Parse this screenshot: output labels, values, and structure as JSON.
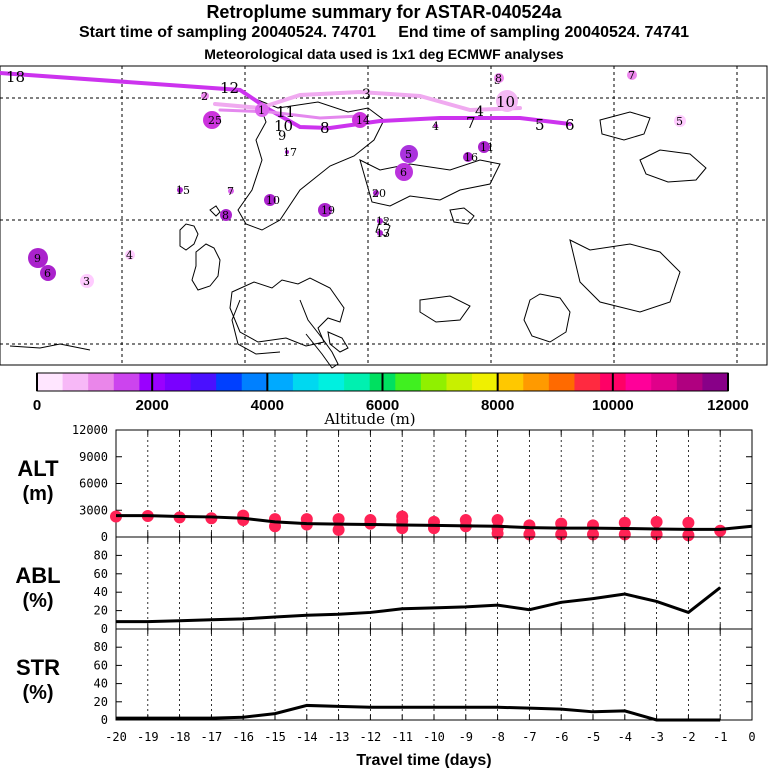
{
  "header": {
    "title": "Retroplume summary for ASTAR-040524a",
    "start_label": "Start time of sampling 20040524. 74701",
    "end_label": "End time of sampling 20040524. 74741",
    "met_label": "Meteorological data used is 1x1 deg ECMWF analyses"
  },
  "colorbar": {
    "label": "Altitude (m)",
    "ticks": [
      "0",
      "2000",
      "4000",
      "6000",
      "8000",
      "10000",
      "12000"
    ],
    "colors": [
      "#ffe6ff",
      "#f7b8f7",
      "#ea86ea",
      "#cc44ee",
      "#9a00ff",
      "#7a00ff",
      "#4a10ff",
      "#0040ff",
      "#0080ff",
      "#00aaff",
      "#00d8f0",
      "#00f0e0",
      "#00f0b0",
      "#00e060",
      "#40f020",
      "#90f000",
      "#c8f000",
      "#f0f000",
      "#ffc800",
      "#ff9a00",
      "#ff6a00",
      "#ff2a40",
      "#ff0066",
      "#ff0099",
      "#e0008a",
      "#b00080",
      "#880088"
    ]
  },
  "map": {
    "plume_path_1_labels": [
      "18",
      "12",
      "11",
      "10",
      "9",
      "8"
    ],
    "plume_path_2_labels": [
      "3",
      "3",
      "4",
      "7",
      "5",
      "6",
      "10"
    ],
    "clusters": [
      {
        "label": "2",
        "color": "#ee88ee"
      },
      {
        "label": "25",
        "color": "#cc33dd"
      },
      {
        "label": "1",
        "color": "#dd66ee"
      },
      {
        "label": "14",
        "color": "#cc33dd"
      },
      {
        "label": "4",
        "color": "#cc33dd"
      },
      {
        "label": "17",
        "color": "#aa22cc"
      },
      {
        "label": "5",
        "color": "#aa33dd"
      },
      {
        "label": "6",
        "color": "#bb33dd"
      },
      {
        "label": "16",
        "color": "#aa22cc"
      },
      {
        "label": "11",
        "color": "#aa22cc"
      },
      {
        "label": "15",
        "color": "#aa22cc"
      },
      {
        "label": "7",
        "color": "#dd66ee"
      },
      {
        "label": "10",
        "color": "#aa22cc"
      },
      {
        "label": "8",
        "color": "#aa22cc"
      },
      {
        "label": "19",
        "color": "#aa22cc"
      },
      {
        "label": "20",
        "color": "#aa22cc"
      },
      {
        "label": "12",
        "color": "#aa22cc"
      },
      {
        "label": "13",
        "color": "#aa22cc"
      },
      {
        "label": "9",
        "color": "#aa22cc"
      },
      {
        "label": "6",
        "color": "#aa22cc"
      },
      {
        "label": "3",
        "color": "#ffccff"
      },
      {
        "label": "4",
        "color": "#ffccff"
      },
      {
        "label": "8",
        "color": "#ee88ee"
      },
      {
        "label": "7",
        "color": "#ee88ee"
      },
      {
        "label": "5",
        "color": "#ffccff"
      }
    ]
  },
  "chart_data": [
    {
      "type": "scatter",
      "panel": "ALT",
      "ylabel_line1": "ALT",
      "ylabel_line2": "(m)",
      "ylim": [
        0,
        12000
      ],
      "yticks": [
        "0",
        "3000",
        "6000",
        "9000",
        "12000"
      ],
      "x": [
        -20,
        -19,
        -18,
        -17,
        -16,
        -15,
        -14,
        -13,
        -12,
        -11,
        -10,
        -9,
        -8,
        -7,
        -6,
        -5,
        -4,
        -3,
        -2,
        -1,
        0
      ],
      "mean_altitude": [
        2400,
        2400,
        2300,
        2250,
        2100,
        1700,
        1500,
        1450,
        1400,
        1350,
        1300,
        1250,
        1200,
        1050,
        1000,
        1000,
        950,
        900,
        850,
        850,
        1200
      ],
      "points": [
        {
          "x": -20,
          "y": 2300
        },
        {
          "x": -19,
          "y": 2350
        },
        {
          "x": -18,
          "y": 2200
        },
        {
          "x": -17,
          "y": 2100
        },
        {
          "x": -16,
          "y": 1900
        },
        {
          "x": -16,
          "y": 2400
        },
        {
          "x": -15,
          "y": 1200
        },
        {
          "x": -15,
          "y": 2000
        },
        {
          "x": -14,
          "y": 1400
        },
        {
          "x": -14,
          "y": 2000
        },
        {
          "x": -13,
          "y": 800
        },
        {
          "x": -13,
          "y": 2000
        },
        {
          "x": -12,
          "y": 1500
        },
        {
          "x": -12,
          "y": 1900
        },
        {
          "x": -11,
          "y": 1000
        },
        {
          "x": -11,
          "y": 1800
        },
        {
          "x": -11,
          "y": 2300
        },
        {
          "x": -10,
          "y": 1000
        },
        {
          "x": -10,
          "y": 1700
        },
        {
          "x": -9,
          "y": 1200
        },
        {
          "x": -9,
          "y": 1900
        },
        {
          "x": -8,
          "y": 400
        },
        {
          "x": -8,
          "y": 1000
        },
        {
          "x": -8,
          "y": 1900
        },
        {
          "x": -7,
          "y": 300
        },
        {
          "x": -7,
          "y": 1300
        },
        {
          "x": -6,
          "y": 300
        },
        {
          "x": -6,
          "y": 1500
        },
        {
          "x": -5,
          "y": 300
        },
        {
          "x": -5,
          "y": 1300
        },
        {
          "x": -4,
          "y": 300
        },
        {
          "x": -4,
          "y": 1600
        },
        {
          "x": -3,
          "y": 300
        },
        {
          "x": -3,
          "y": 1700
        },
        {
          "x": -2,
          "y": 200
        },
        {
          "x": -2,
          "y": 1600
        },
        {
          "x": -1,
          "y": 700
        }
      ]
    },
    {
      "type": "line",
      "panel": "ABL",
      "ylabel_line1": "ABL",
      "ylabel_line2": "(%)",
      "ylim": [
        0,
        100
      ],
      "yticks": [
        "0",
        "20",
        "40",
        "60",
        "80"
      ],
      "x": [
        -20,
        -19,
        -18,
        -17,
        -16,
        -15,
        -14,
        -13,
        -12,
        -11,
        -10,
        -9,
        -8,
        -7,
        -6,
        -5,
        -4,
        -3,
        -2,
        -1
      ],
      "values": [
        8,
        8,
        9,
        10,
        11,
        13,
        15,
        16,
        18,
        22,
        23,
        24,
        26,
        21,
        29,
        33,
        38,
        30,
        18,
        45
      ]
    },
    {
      "type": "line",
      "panel": "STR",
      "ylabel_line1": "STR",
      "ylabel_line2": "(%)",
      "ylim": [
        0,
        100
      ],
      "yticks": [
        "0",
        "20",
        "40",
        "60",
        "80"
      ],
      "x": [
        -20,
        -19,
        -18,
        -17,
        -16,
        -15,
        -14,
        -13,
        -12,
        -11,
        -10,
        -9,
        -8,
        -7,
        -6,
        -5,
        -4,
        -3,
        -2,
        -1
      ],
      "values": [
        2,
        2,
        2,
        2,
        3,
        7,
        16,
        15,
        14,
        14,
        14,
        14,
        14,
        13,
        12,
        9,
        10,
        0,
        0,
        0
      ],
      "xlabel": "Travel time (days)",
      "xticks": [
        "-20",
        "-19",
        "-18",
        "-17",
        "-16",
        "-15",
        "-14",
        "-13",
        "-12",
        "-11",
        "-10",
        "-9",
        "-8",
        "-7",
        "-6",
        "-5",
        "-4",
        "-3",
        "-2",
        "-1",
        "0"
      ]
    }
  ]
}
